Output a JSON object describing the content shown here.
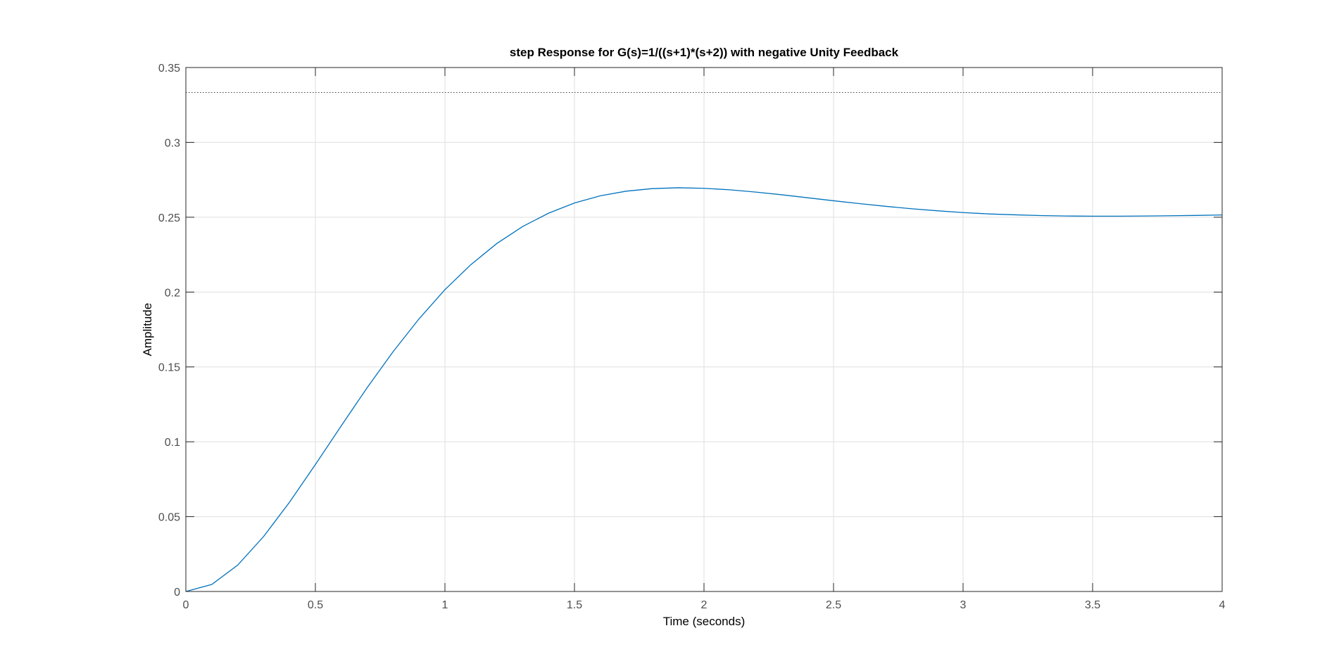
{
  "chart_data": {
    "type": "line",
    "title": "step Response for G(s)=1/((s+1)*(s+2)) with negative Unity Feedback",
    "xlabel": "Time (seconds)",
    "ylabel": "Amplitude",
    "xlim": [
      0,
      4
    ],
    "ylim": [
      0,
      0.35
    ],
    "xticks": [
      0,
      0.5,
      1,
      1.5,
      2,
      2.5,
      3,
      3.5,
      4
    ],
    "xtick_labels": [
      "0",
      "0.5",
      "1",
      "1.5",
      "2",
      "2.5",
      "3",
      "3.5",
      "4"
    ],
    "yticks": [
      0,
      0.05,
      0.1,
      0.15,
      0.2,
      0.25,
      0.3,
      0.35
    ],
    "ytick_labels": [
      "0",
      "0.05",
      "0.1",
      "0.15",
      "0.2",
      "0.25",
      "0.3",
      "0.35"
    ],
    "grid": true,
    "steady_state": 0.3333,
    "series": [
      {
        "color": "#0072bd",
        "x": [
          0,
          0.1,
          0.2,
          0.3,
          0.4,
          0.5,
          0.6,
          0.7,
          0.8,
          0.9,
          1.0,
          1.1,
          1.2,
          1.3,
          1.4,
          1.5,
          1.6,
          1.7,
          1.8,
          1.9,
          2.0,
          2.1,
          2.2,
          2.3,
          2.4,
          2.5,
          2.6,
          2.7,
          2.8,
          2.9,
          3.0,
          3.1,
          3.2,
          3.3,
          3.4,
          3.5,
          3.6,
          3.7,
          3.8,
          3.9,
          4.0
        ],
        "y": [
          0,
          0.0047,
          0.0176,
          0.0367,
          0.0596,
          0.0848,
          0.1107,
          0.1362,
          0.1602,
          0.1821,
          0.2016,
          0.2183,
          0.2324,
          0.2438,
          0.2527,
          0.2595,
          0.2643,
          0.2674,
          0.2691,
          0.2697,
          0.2693,
          0.2683,
          0.2668,
          0.265,
          0.263,
          0.261,
          0.2591,
          0.2573,
          0.2557,
          0.2543,
          0.2531,
          0.2522,
          0.2516,
          0.2511,
          0.2508,
          0.2507,
          0.2507,
          0.2508,
          0.251,
          0.2512,
          0.2515
        ]
      }
    ]
  }
}
